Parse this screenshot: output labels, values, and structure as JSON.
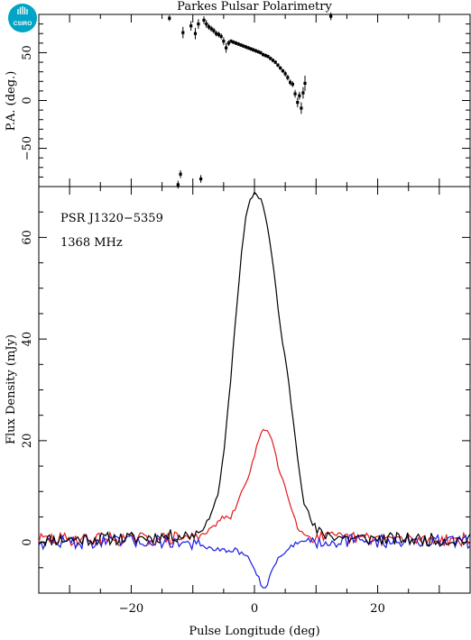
{
  "logo": {
    "text": "CSIRO"
  },
  "chart_data": [
    {
      "type": "scatter",
      "title": "Parkes Pulsar Polarimetry",
      "ylabel": "P.A. (deg.)",
      "xlim": [
        -35,
        35
      ],
      "ylim": [
        -90,
        90
      ],
      "yticks": [
        -50,
        0,
        50
      ],
      "ytick_labels": [
        "−50",
        "0",
        "50"
      ],
      "points": [
        {
          "x": -13.8,
          "y": 86,
          "err": 3
        },
        {
          "x": -12.4,
          "y": -88,
          "err": 4
        },
        {
          "x": -12.0,
          "y": -77,
          "err": 4
        },
        {
          "x": -11.6,
          "y": 71,
          "err": 6
        },
        {
          "x": -10.3,
          "y": 78,
          "err": 5
        },
        {
          "x": -9.6,
          "y": 70,
          "err": 6
        },
        {
          "x": -9.1,
          "y": 80,
          "err": 5
        },
        {
          "x": -8.7,
          "y": -82,
          "err": 4
        },
        {
          "x": -8.2,
          "y": 84,
          "err": 4
        },
        {
          "x": -7.8,
          "y": 80,
          "err": 4
        },
        {
          "x": -7.4,
          "y": 77,
          "err": 3
        },
        {
          "x": -7.0,
          "y": 75,
          "err": 3
        },
        {
          "x": -6.6,
          "y": 73,
          "err": 3
        },
        {
          "x": -6.2,
          "y": 70,
          "err": 3
        },
        {
          "x": -5.8,
          "y": 69,
          "err": 3
        },
        {
          "x": -5.4,
          "y": 67,
          "err": 3
        },
        {
          "x": -5.0,
          "y": 62,
          "err": 4
        },
        {
          "x": -4.6,
          "y": 55,
          "err": 5
        },
        {
          "x": -4.2,
          "y": 60,
          "err": 3
        },
        {
          "x": -3.8,
          "y": 62,
          "err": 2
        },
        {
          "x": -3.4,
          "y": 61,
          "err": 2
        },
        {
          "x": -3.0,
          "y": 60,
          "err": 2
        },
        {
          "x": -2.6,
          "y": 59,
          "err": 2
        },
        {
          "x": -2.2,
          "y": 58,
          "err": 2
        },
        {
          "x": -1.8,
          "y": 57,
          "err": 2
        },
        {
          "x": -1.4,
          "y": 56,
          "err": 2
        },
        {
          "x": -1.0,
          "y": 55,
          "err": 2
        },
        {
          "x": -0.6,
          "y": 54,
          "err": 2
        },
        {
          "x": -0.2,
          "y": 53,
          "err": 2
        },
        {
          "x": 0.2,
          "y": 52,
          "err": 2
        },
        {
          "x": 0.6,
          "y": 51,
          "err": 2
        },
        {
          "x": 1.0,
          "y": 50,
          "err": 2
        },
        {
          "x": 1.4,
          "y": 48,
          "err": 2
        },
        {
          "x": 1.8,
          "y": 47,
          "err": 2
        },
        {
          "x": 2.2,
          "y": 46,
          "err": 2
        },
        {
          "x": 2.6,
          "y": 44,
          "err": 2
        },
        {
          "x": 3.0,
          "y": 42,
          "err": 2
        },
        {
          "x": 3.4,
          "y": 40,
          "err": 2
        },
        {
          "x": 3.8,
          "y": 37,
          "err": 2
        },
        {
          "x": 4.2,
          "y": 34,
          "err": 2
        },
        {
          "x": 4.6,
          "y": 31,
          "err": 2
        },
        {
          "x": 5.0,
          "y": 28,
          "err": 3
        },
        {
          "x": 5.4,
          "y": 24,
          "err": 3
        },
        {
          "x": 5.8,
          "y": 19,
          "err": 3
        },
        {
          "x": 6.2,
          "y": 17,
          "err": 3
        },
        {
          "x": 6.6,
          "y": 7,
          "err": 4
        },
        {
          "x": 7.0,
          "y": -2,
          "err": 5
        },
        {
          "x": 7.3,
          "y": 5,
          "err": 4
        },
        {
          "x": 7.6,
          "y": -8,
          "err": 6
        },
        {
          "x": 7.9,
          "y": 8,
          "err": 6
        },
        {
          "x": 8.2,
          "y": 18,
          "err": 8
        },
        {
          "x": 12.4,
          "y": 88,
          "err": 4
        }
      ]
    },
    {
      "type": "line",
      "xlabel": "Pulse Longitude (deg)",
      "ylabel": "Flux Density (mJy)",
      "xlim": [
        -35,
        35
      ],
      "ylim": [
        -10,
        70
      ],
      "xticks": [
        -20,
        0,
        20
      ],
      "xtick_labels": [
        "−20",
        "0",
        "20"
      ],
      "yticks": [
        0,
        20,
        40,
        60
      ],
      "ytick_labels": [
        "0",
        "20",
        "40",
        "60"
      ],
      "annotations": [
        "PSR J1320−5359",
        "1368 MHz"
      ],
      "series": [
        {
          "color": "#000000",
          "x": [
            -35,
            -20,
            -10,
            -8,
            -6,
            -5,
            -4,
            -3,
            -2,
            -1.5,
            -1,
            -0.5,
            0,
            0.5,
            1,
            1.5,
            2,
            3,
            4,
            5,
            5.5,
            6,
            7,
            8,
            10,
            15,
            35
          ],
          "y": [
            0.5,
            0.8,
            1.5,
            3,
            9,
            17,
            30,
            45,
            58,
            63,
            66,
            67.8,
            68.8,
            68.3,
            67.6,
            66,
            63,
            55,
            44,
            36,
            32,
            27,
            17,
            8,
            2,
            0.8,
            0.4
          ]
        },
        {
          "color": "#e41a1c",
          "x": [
            -35,
            -15,
            -10,
            -7,
            -6,
            -5,
            -4,
            -3,
            -2,
            -1,
            0,
            0.5,
            1,
            1.5,
            2,
            2.5,
            3,
            3.5,
            4,
            5,
            6,
            7,
            8,
            10,
            15,
            35
          ],
          "y": [
            0.6,
            0.7,
            1,
            2.5,
            4,
            5,
            4.5,
            7,
            10,
            13,
            17,
            19.5,
            21,
            22,
            22.3,
            21.5,
            19.5,
            17,
            14,
            11,
            7,
            3,
            1.5,
            1,
            0.8,
            0.5
          ]
        },
        {
          "color": "#1a1ae6",
          "x": [
            -35,
            -15,
            -10,
            -8,
            -6,
            -4,
            -3,
            -2,
            -1,
            0,
            0.5,
            1,
            1.5,
            2,
            2.5,
            3,
            3.5,
            4,
            5,
            6,
            7,
            8,
            10,
            15,
            35
          ],
          "y": [
            0,
            0.2,
            -0.3,
            -1,
            -1.5,
            -1.8,
            -1.5,
            -2.3,
            -3,
            -5,
            -6.5,
            -8,
            -9.2,
            -8.5,
            -6.5,
            -5,
            -4,
            -3,
            -1.8,
            -0.8,
            0,
            0.6,
            0.2,
            0.3,
            0.1
          ]
        }
      ]
    }
  ]
}
